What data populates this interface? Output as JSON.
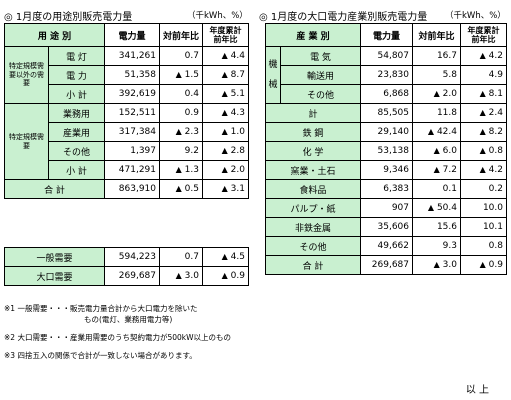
{
  "left": {
    "title": "◎ 1月度の用途別販売電力量",
    "unit": "（千kWh、%）",
    "headers": {
      "category": "用 途 別",
      "volume": "電力量",
      "yoy": "対前年比",
      "fy_yoy": "年度累計前年比"
    },
    "groups": {
      "non_regulated": "特定規模需要以外の需要",
      "regulated": "特定規模需要"
    },
    "rows": [
      {
        "label": "電 灯",
        "volume": "341,261",
        "yoy": "0.7",
        "fy": "4.4",
        "yoy_tri": "",
        "fy_tri": "▲"
      },
      {
        "label": "電 力",
        "volume": "51,358",
        "yoy": "1.5",
        "fy": "8.7",
        "yoy_tri": "▲",
        "fy_tri": "▲"
      },
      {
        "label": "小 計",
        "volume": "392,619",
        "yoy": "0.4",
        "fy": "5.1",
        "yoy_tri": "",
        "fy_tri": "▲"
      },
      {
        "label": "業務用",
        "volume": "152,511",
        "yoy": "0.9",
        "fy": "4.3",
        "yoy_tri": "",
        "fy_tri": "▲"
      },
      {
        "label": "産業用",
        "volume": "317,384",
        "yoy": "2.3",
        "fy": "1.0",
        "yoy_tri": "▲",
        "fy_tri": "▲"
      },
      {
        "label": "その他",
        "volume": "1,397",
        "yoy": "9.2",
        "fy": "2.8",
        "yoy_tri": "",
        "fy_tri": "▲"
      },
      {
        "label": "小 計",
        "volume": "471,291",
        "yoy": "1.3",
        "fy": "2.0",
        "yoy_tri": "▲",
        "fy_tri": "▲"
      }
    ],
    "total": {
      "label": "合 計",
      "volume": "863,910",
      "yoy": "0.5",
      "fy": "3.1",
      "yoy_tri": "▲",
      "fy_tri": "▲"
    },
    "demand": [
      {
        "label": "一般需要",
        "volume": "594,223",
        "yoy": "0.7",
        "fy": "4.5",
        "yoy_tri": "",
        "fy_tri": "▲"
      },
      {
        "label": "大口需要",
        "volume": "269,687",
        "yoy": "3.0",
        "fy": "0.9",
        "yoy_tri": "▲",
        "fy_tri": "▲"
      }
    ]
  },
  "right": {
    "title": "◎ 1月度の大口電力産業別販売電力量",
    "unit": "（千kWh、%）",
    "headers": {
      "category": "産 業 別",
      "volume": "電力量",
      "yoy": "対前年比",
      "fy_yoy": "年度累計前年比"
    },
    "machinery_group": "機械",
    "machinery": [
      {
        "label": "電 気",
        "volume": "54,807",
        "yoy": "16.7",
        "fy": "4.2",
        "yoy_tri": "",
        "fy_tri": "▲"
      },
      {
        "label": "輸送用",
        "volume": "23,830",
        "yoy": "5.8",
        "fy": "4.9",
        "yoy_tri": "",
        "fy_tri": ""
      },
      {
        "label": "その他",
        "volume": "6,868",
        "yoy": "2.0",
        "fy": "8.1",
        "yoy_tri": "▲",
        "fy_tri": "▲"
      }
    ],
    "machinery_total": {
      "label": "計",
      "volume": "85,505",
      "yoy": "11.8",
      "fy": "2.4",
      "yoy_tri": "",
      "fy_tri": "▲"
    },
    "rows": [
      {
        "label": "鉄 鋼",
        "volume": "29,140",
        "yoy": "42.4",
        "fy": "8.2",
        "yoy_tri": "▲",
        "fy_tri": "▲"
      },
      {
        "label": "化 学",
        "volume": "53,138",
        "yoy": "6.0",
        "fy": "0.8",
        "yoy_tri": "▲",
        "fy_tri": "▲"
      },
      {
        "label": "窯業・土石",
        "volume": "9,346",
        "yoy": "7.2",
        "fy": "4.2",
        "yoy_tri": "▲",
        "fy_tri": "▲"
      },
      {
        "label": "食料品",
        "volume": "6,383",
        "yoy": "0.1",
        "fy": "0.2",
        "yoy_tri": "",
        "fy_tri": ""
      },
      {
        "label": "パルプ・紙",
        "volume": "907",
        "yoy": "50.4",
        "fy": "10.0",
        "yoy_tri": "▲",
        "fy_tri": ""
      },
      {
        "label": "非鉄金属",
        "volume": "35,606",
        "yoy": "15.6",
        "fy": "10.1",
        "yoy_tri": "",
        "fy_tri": ""
      },
      {
        "label": "その他",
        "volume": "49,662",
        "yoy": "9.3",
        "fy": "0.8",
        "yoy_tri": "",
        "fy_tri": ""
      }
    ],
    "total": {
      "label": "合 計",
      "volume": "269,687",
      "yoy": "3.0",
      "fy": "0.9",
      "yoy_tri": "▲",
      "fy_tri": "▲"
    }
  },
  "notes": [
    "※1 一般需要・・・販売電力量合計から大口電力を除いた",
    "もの(電灯、業務用電力等)",
    "※2 大口需要・・・産業用需要のうち契約電力が500kW以上のもの",
    "※3 四捨五入の関係で合計が一致しない場合があります。"
  ],
  "closing": "以 上"
}
